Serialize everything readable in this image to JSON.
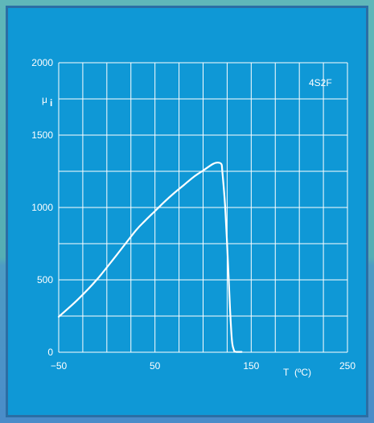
{
  "chart_data": {
    "type": "line",
    "title": "",
    "xlabel": "T (ºC)",
    "ylabel": "μi",
    "series_label": "4S2F",
    "xlim": [
      -50,
      250
    ],
    "ylim": [
      0,
      2000
    ],
    "x_ticks": [
      -50,
      50,
      150,
      250
    ],
    "y_ticks": [
      0,
      500,
      1000,
      1500,
      2000
    ],
    "x_tick_labels": [
      "−50",
      "50",
      "150",
      "250"
    ],
    "y_tick_labels": [
      "0",
      "500",
      "1000",
      "1500",
      "2000"
    ],
    "grid": true,
    "x_grid_step": 25,
    "y_grid_step": 250,
    "series": [
      {
        "name": "4S2F",
        "color": "#ffffff",
        "x": [
          -50,
          -30,
          -10,
          10,
          30,
          40,
          50,
          60,
          70,
          80,
          90,
          100,
          110,
          115,
          119,
          120,
          123,
          126,
          128,
          130,
          132,
          133,
          134,
          135,
          140
        ],
        "y": [
          245,
          365,
          505,
          670,
          840,
          910,
          975,
          1040,
          1100,
          1155,
          1210,
          1255,
          1300,
          1310,
          1300,
          1250,
          1000,
          600,
          300,
          80,
          15,
          5,
          3,
          2,
          2
        ]
      }
    ]
  },
  "labels": {
    "legend": "4S2F",
    "y_axis_symbol": "μ",
    "y_axis_subscript": "i",
    "x_axis_symbol": "T",
    "x_axis_unit": "(ºC)"
  }
}
